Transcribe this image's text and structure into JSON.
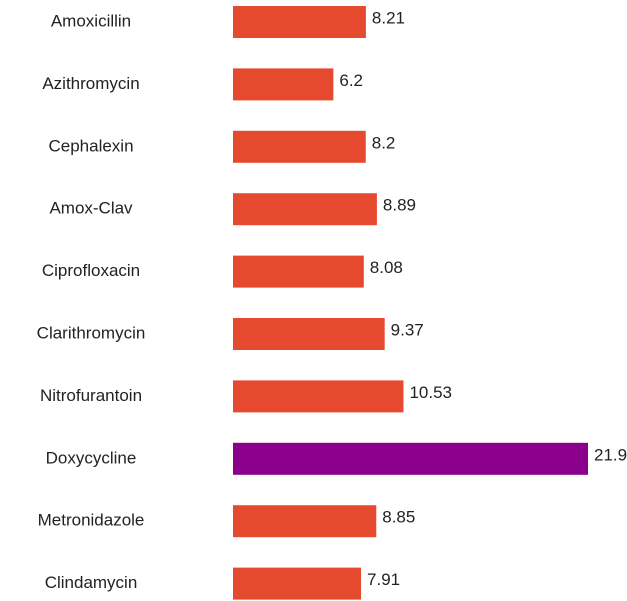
{
  "chart_data": {
    "type": "hbar",
    "categories": [
      "Amoxicillin",
      "Azithromycin",
      "Cephalexin",
      "Amox-Clav",
      "Ciprofloxacin",
      "Clarithromycin",
      "Nitrofurantoin",
      "Doxycycline",
      "Metronidazole",
      "Clindamycin"
    ],
    "values": [
      8.21,
      6.2,
      8.2,
      8.89,
      8.08,
      9.37,
      10.53,
      21.93,
      8.85,
      7.91
    ],
    "colors": [
      "#e64a2e",
      "#e64a2e",
      "#e64a2e",
      "#e64a2e",
      "#e64a2e",
      "#e64a2e",
      "#e64a2e",
      "#8b008b",
      "#e64a2e",
      "#e64a2e"
    ]
  }
}
